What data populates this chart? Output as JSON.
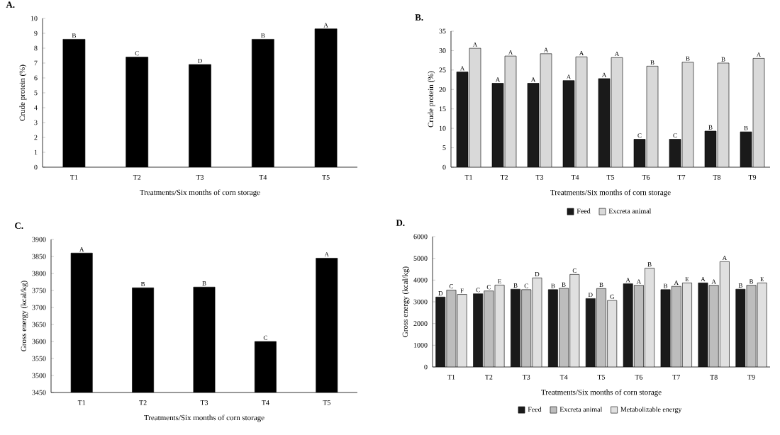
{
  "chart_data": [
    {
      "type": "bar",
      "title": "A.",
      "xlabel": "Treatments/Six months of corn storage",
      "ylabel": "Crude protein (%)",
      "categories": [
        "T1",
        "T2",
        "T3",
        "T4",
        "T5"
      ],
      "values": [
        8.6,
        7.4,
        6.9,
        8.6,
        9.3
      ],
      "color": "#000000",
      "value_labels": [
        "B",
        "C",
        "D",
        "B",
        "A"
      ],
      "ylim": [
        0,
        10
      ],
      "yticks": [
        0,
        1,
        2,
        3,
        4,
        5,
        6,
        7,
        8,
        9,
        10
      ]
    },
    {
      "type": "bar",
      "title": "B.",
      "xlabel": "Treatments/Six months of corn storage",
      "ylabel": "Crude protein (%)",
      "categories": [
        "T1",
        "T2",
        "T3",
        "T4",
        "T5",
        "T6",
        "T7",
        "T8",
        "T9"
      ],
      "series": [
        {
          "name": "Feed",
          "color": "#1a1a1a",
          "values": [
            24.5,
            21.6,
            21.6,
            22.3,
            22.8,
            7.2,
            7.2,
            9.3,
            9.1
          ],
          "value_labels": [
            "A",
            "A",
            "A",
            "A",
            "A",
            "C",
            "C",
            "B",
            "B"
          ]
        },
        {
          "name": "Excreta animal",
          "color": "#d9d9d9",
          "values": [
            30.6,
            28.6,
            29.2,
            28.4,
            28.2,
            26.0,
            27.0,
            26.8,
            28.0
          ],
          "value_labels": [
            "A",
            "A",
            "A",
            "A",
            "A",
            "B",
            "B",
            "B",
            "A"
          ]
        }
      ],
      "ylim": [
        0,
        35
      ],
      "yticks": [
        0,
        5,
        10,
        15,
        20,
        25,
        30,
        35
      ],
      "legend": "bottom"
    },
    {
      "type": "bar",
      "title": "C.",
      "xlabel": "Treatments/Six months of corn storage",
      "ylabel": "Gross energy (kcal/kg)",
      "categories": [
        "T1",
        "T2",
        "T3",
        "T4",
        "T5"
      ],
      "values": [
        3860,
        3758,
        3760,
        3600,
        3845
      ],
      "color": "#000000",
      "value_labels": [
        "A",
        "B",
        "B",
        "C",
        "A"
      ],
      "ylim": [
        3450,
        3900
      ],
      "yticks": [
        3450,
        3500,
        3550,
        3600,
        3650,
        3700,
        3750,
        3800,
        3850,
        3900
      ]
    },
    {
      "type": "bar",
      "title": "D.",
      "xlabel": "Treatments/Six months of corn storage",
      "ylabel": "Gross energy (kcal/kg)",
      "categories": [
        "T1",
        "T2",
        "T3",
        "T4",
        "T5",
        "T6",
        "T7",
        "T8",
        "T9"
      ],
      "series": [
        {
          "name": "Feed",
          "color": "#1a1a1a",
          "values": [
            3220,
            3370,
            3580,
            3560,
            3150,
            3830,
            3560,
            3870,
            3580
          ],
          "value_labels": [
            "D",
            "C",
            "B",
            "B",
            "D",
            "A",
            "B",
            "A",
            "B"
          ]
        },
        {
          "name": "Excreta animal",
          "color": "#bdbdbd",
          "values": [
            3540,
            3500,
            3560,
            3620,
            3610,
            3760,
            3710,
            3760,
            3760
          ],
          "value_labels": [
            "C",
            "C",
            "C",
            "B",
            "B",
            "A",
            "A",
            "A",
            "B"
          ]
        },
        {
          "name": "Metabolizable energy",
          "color": "#e0e0e0",
          "values": [
            3340,
            3770,
            4100,
            4260,
            3060,
            4550,
            3870,
            4850,
            3870
          ],
          "value_labels": [
            "F",
            "E",
            "D",
            "C",
            "G",
            "B",
            "E",
            "A",
            "E"
          ]
        }
      ],
      "ylim": [
        0,
        6000
      ],
      "yticks": [
        0,
        1000,
        2000,
        3000,
        4000,
        5000,
        6000
      ],
      "legend": "bottom"
    }
  ]
}
